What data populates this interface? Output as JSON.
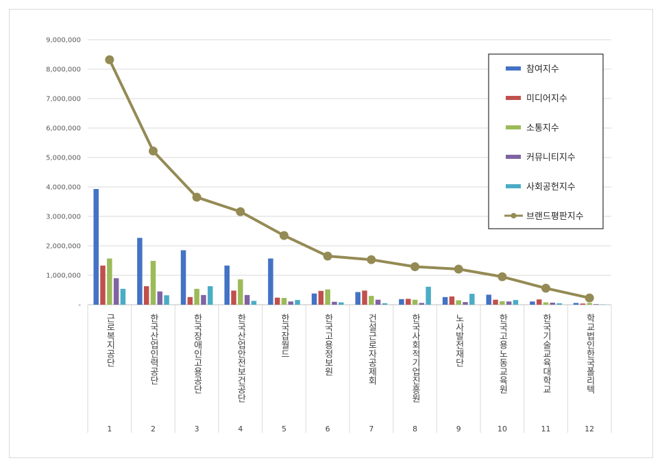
{
  "chart_data": {
    "type": "bar",
    "title": "",
    "xlabel": "",
    "ylabel": "",
    "ylim": [
      0,
      9000000
    ],
    "y_ticks": [
      "-",
      "1,000,000",
      "2,000,000",
      "3,000,000",
      "4,000,000",
      "5,000,000",
      "6,000,000",
      "7,000,000",
      "8,000,000",
      "9,000,000"
    ],
    "grid": true,
    "legend_position": "top-right",
    "categories": [
      "근로복지공단",
      "한국산업인력공단",
      "한국장애인고용공단",
      "한국산업안전보건공단",
      "한국잡월드",
      "한국고용정보원",
      "건설근로자공제회",
      "한국사회적기업진흥원",
      "노사발전재단",
      "한국고용노동교육원",
      "한국기술교육대학교",
      "학교법인한국폴리텍"
    ],
    "ranks": [
      "1",
      "2",
      "3",
      "4",
      "5",
      "6",
      "7",
      "8",
      "9",
      "10",
      "11",
      "12"
    ],
    "series": [
      {
        "name": "참여지수",
        "kind": "bar",
        "color": "#4472c4",
        "values": [
          3930000,
          2270000,
          1850000,
          1330000,
          1570000,
          380000,
          430000,
          190000,
          260000,
          340000,
          110000,
          60000
        ]
      },
      {
        "name": "미디어지수",
        "kind": "bar",
        "color": "#c0504d",
        "values": [
          1330000,
          630000,
          260000,
          480000,
          240000,
          470000,
          480000,
          200000,
          280000,
          170000,
          180000,
          40000
        ]
      },
      {
        "name": "소통지수",
        "kind": "bar",
        "color": "#9bbb59",
        "values": [
          1570000,
          1490000,
          540000,
          860000,
          230000,
          520000,
          300000,
          170000,
          150000,
          120000,
          80000,
          60000
        ]
      },
      {
        "name": "커뮤니티지수",
        "kind": "bar",
        "color": "#8064a2",
        "values": [
          900000,
          450000,
          330000,
          330000,
          110000,
          100000,
          170000,
          60000,
          90000,
          110000,
          70000,
          20000
        ]
      },
      {
        "name": "사회공헌지수",
        "kind": "bar",
        "color": "#4bacc6",
        "values": [
          540000,
          320000,
          630000,
          130000,
          160000,
          80000,
          50000,
          610000,
          370000,
          160000,
          50000,
          10000
        ]
      },
      {
        "name": "브랜드평판지수",
        "kind": "line",
        "color": "#948a54",
        "values": [
          8320000,
          5220000,
          3650000,
          3160000,
          2350000,
          1650000,
          1530000,
          1290000,
          1210000,
          950000,
          560000,
          230000
        ]
      }
    ]
  }
}
